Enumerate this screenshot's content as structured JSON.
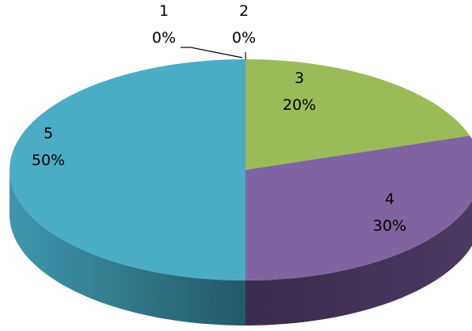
{
  "chart_data": {
    "type": "pie",
    "three_d": true,
    "title": "",
    "slices": [
      {
        "label": "1",
        "value": 0,
        "percent_label": "0%",
        "color": "#4F81BD"
      },
      {
        "label": "2",
        "value": 0,
        "percent_label": "0%",
        "color": "#C0504D"
      },
      {
        "label": "3",
        "value": 20,
        "percent_label": "20%",
        "color": "#9BBB59"
      },
      {
        "label": "4",
        "value": 30,
        "percent_label": "30%",
        "color": "#8064A2"
      },
      {
        "label": "5",
        "value": 50,
        "percent_label": "50%",
        "color": "#4BACC6"
      }
    ]
  }
}
